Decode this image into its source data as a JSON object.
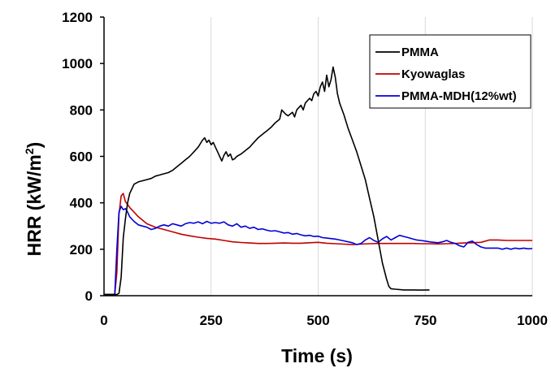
{
  "chart_data": {
    "type": "line",
    "title": "",
    "xlabel": "Time (s)",
    "ylabel_main": "HRR (kW/m",
    "ylabel_sup": "2",
    "ylabel_tail": ")",
    "xlim": [
      0,
      1000
    ],
    "ylim": [
      0,
      1200
    ],
    "xticks": [
      0,
      250,
      500,
      750,
      1000
    ],
    "yticks": [
      0,
      200,
      400,
      600,
      800,
      1000,
      1200
    ],
    "grid": {
      "vertical": true,
      "horizontal": false
    },
    "legend_position": "top-right",
    "series": [
      {
        "name": "PMMA",
        "color": "#000000",
        "points": [
          [
            0,
            5
          ],
          [
            30,
            5
          ],
          [
            35,
            10
          ],
          [
            40,
            80
          ],
          [
            45,
            250
          ],
          [
            50,
            330
          ],
          [
            55,
            400
          ],
          [
            60,
            440
          ],
          [
            65,
            460
          ],
          [
            70,
            480
          ],
          [
            80,
            490
          ],
          [
            90,
            495
          ],
          [
            100,
            500
          ],
          [
            110,
            505
          ],
          [
            120,
            515
          ],
          [
            130,
            520
          ],
          [
            140,
            525
          ],
          [
            150,
            530
          ],
          [
            160,
            540
          ],
          [
            170,
            555
          ],
          [
            180,
            570
          ],
          [
            190,
            585
          ],
          [
            200,
            600
          ],
          [
            210,
            620
          ],
          [
            220,
            640
          ],
          [
            230,
            670
          ],
          [
            235,
            680
          ],
          [
            240,
            660
          ],
          [
            245,
            670
          ],
          [
            250,
            650
          ],
          [
            255,
            660
          ],
          [
            260,
            640
          ],
          [
            265,
            620
          ],
          [
            270,
            600
          ],
          [
            275,
            580
          ],
          [
            280,
            605
          ],
          [
            285,
            620
          ],
          [
            290,
            600
          ],
          [
            295,
            610
          ],
          [
            300,
            585
          ],
          [
            305,
            590
          ],
          [
            310,
            600
          ],
          [
            320,
            610
          ],
          [
            330,
            625
          ],
          [
            340,
            640
          ],
          [
            350,
            660
          ],
          [
            360,
            680
          ],
          [
            370,
            695
          ],
          [
            380,
            710
          ],
          [
            390,
            725
          ],
          [
            400,
            745
          ],
          [
            410,
            760
          ],
          [
            415,
            800
          ],
          [
            420,
            790
          ],
          [
            425,
            780
          ],
          [
            430,
            775
          ],
          [
            440,
            790
          ],
          [
            445,
            770
          ],
          [
            450,
            800
          ],
          [
            460,
            820
          ],
          [
            465,
            800
          ],
          [
            470,
            830
          ],
          [
            480,
            850
          ],
          [
            485,
            840
          ],
          [
            490,
            870
          ],
          [
            495,
            880
          ],
          [
            500,
            860
          ],
          [
            505,
            900
          ],
          [
            510,
            920
          ],
          [
            515,
            880
          ],
          [
            520,
            950
          ],
          [
            525,
            900
          ],
          [
            530,
            930
          ],
          [
            535,
            985
          ],
          [
            540,
            940
          ],
          [
            545,
            870
          ],
          [
            550,
            830
          ],
          [
            560,
            780
          ],
          [
            570,
            720
          ],
          [
            580,
            670
          ],
          [
            590,
            620
          ],
          [
            600,
            560
          ],
          [
            610,
            500
          ],
          [
            620,
            420
          ],
          [
            630,
            340
          ],
          [
            640,
            240
          ],
          [
            650,
            140
          ],
          [
            660,
            70
          ],
          [
            665,
            40
          ],
          [
            670,
            30
          ],
          [
            680,
            28
          ],
          [
            700,
            25
          ],
          [
            720,
            25
          ],
          [
            740,
            24
          ],
          [
            760,
            25
          ]
        ]
      },
      {
        "name": "Kyowaglas",
        "color": "#c00000",
        "points": [
          [
            0,
            5
          ],
          [
            25,
            5
          ],
          [
            30,
            100
          ],
          [
            35,
            350
          ],
          [
            40,
            430
          ],
          [
            45,
            440
          ],
          [
            50,
            405
          ],
          [
            60,
            380
          ],
          [
            70,
            360
          ],
          [
            80,
            340
          ],
          [
            100,
            310
          ],
          [
            120,
            295
          ],
          [
            140,
            285
          ],
          [
            160,
            275
          ],
          [
            180,
            265
          ],
          [
            200,
            258
          ],
          [
            220,
            252
          ],
          [
            240,
            247
          ],
          [
            260,
            244
          ],
          [
            280,
            238
          ],
          [
            300,
            232
          ],
          [
            320,
            229
          ],
          [
            340,
            227
          ],
          [
            360,
            225
          ],
          [
            380,
            225
          ],
          [
            400,
            226
          ],
          [
            420,
            227
          ],
          [
            440,
            226
          ],
          [
            460,
            226
          ],
          [
            480,
            228
          ],
          [
            500,
            230
          ],
          [
            520,
            226
          ],
          [
            540,
            224
          ],
          [
            560,
            222
          ],
          [
            580,
            220
          ],
          [
            600,
            222
          ],
          [
            620,
            224
          ],
          [
            640,
            225
          ],
          [
            660,
            225
          ],
          [
            680,
            225
          ],
          [
            700,
            225
          ],
          [
            720,
            225
          ],
          [
            740,
            224
          ],
          [
            760,
            224
          ],
          [
            780,
            223
          ],
          [
            800,
            224
          ],
          [
            820,
            225
          ],
          [
            840,
            227
          ],
          [
            860,
            228
          ],
          [
            880,
            230
          ],
          [
            900,
            240
          ],
          [
            920,
            240
          ],
          [
            940,
            238
          ],
          [
            960,
            238
          ],
          [
            980,
            238
          ],
          [
            1000,
            238
          ]
        ]
      },
      {
        "name": "PMMA-MDH(12%wt)",
        "color": "#0000d8",
        "points": [
          [
            0,
            5
          ],
          [
            25,
            5
          ],
          [
            30,
            200
          ],
          [
            35,
            360
          ],
          [
            40,
            385
          ],
          [
            45,
            370
          ],
          [
            50,
            375
          ],
          [
            55,
            360
          ],
          [
            60,
            340
          ],
          [
            70,
            320
          ],
          [
            80,
            305
          ],
          [
            90,
            300
          ],
          [
            100,
            295
          ],
          [
            110,
            285
          ],
          [
            120,
            290
          ],
          [
            130,
            300
          ],
          [
            140,
            305
          ],
          [
            150,
            300
          ],
          [
            160,
            310
          ],
          [
            170,
            305
          ],
          [
            180,
            300
          ],
          [
            190,
            310
          ],
          [
            200,
            315
          ],
          [
            210,
            312
          ],
          [
            220,
            318
          ],
          [
            230,
            310
          ],
          [
            240,
            320
          ],
          [
            250,
            312
          ],
          [
            260,
            315
          ],
          [
            270,
            312
          ],
          [
            280,
            318
          ],
          [
            290,
            305
          ],
          [
            300,
            300
          ],
          [
            310,
            310
          ],
          [
            320,
            295
          ],
          [
            330,
            300
          ],
          [
            340,
            290
          ],
          [
            350,
            295
          ],
          [
            360,
            285
          ],
          [
            370,
            288
          ],
          [
            380,
            282
          ],
          [
            390,
            278
          ],
          [
            400,
            280
          ],
          [
            410,
            275
          ],
          [
            420,
            270
          ],
          [
            430,
            272
          ],
          [
            440,
            265
          ],
          [
            450,
            268
          ],
          [
            460,
            262
          ],
          [
            470,
            258
          ],
          [
            480,
            260
          ],
          [
            490,
            255
          ],
          [
            500,
            256
          ],
          [
            510,
            250
          ],
          [
            520,
            248
          ],
          [
            530,
            246
          ],
          [
            540,
            244
          ],
          [
            550,
            240
          ],
          [
            560,
            236
          ],
          [
            570,
            232
          ],
          [
            580,
            228
          ],
          [
            590,
            220
          ],
          [
            600,
            225
          ],
          [
            610,
            240
          ],
          [
            620,
            250
          ],
          [
            630,
            238
          ],
          [
            640,
            230
          ],
          [
            650,
            245
          ],
          [
            660,
            255
          ],
          [
            670,
            240
          ],
          [
            680,
            250
          ],
          [
            690,
            260
          ],
          [
            700,
            255
          ],
          [
            710,
            250
          ],
          [
            720,
            245
          ],
          [
            730,
            240
          ],
          [
            740,
            238
          ],
          [
            750,
            235
          ],
          [
            760,
            232
          ],
          [
            770,
            230
          ],
          [
            780,
            228
          ],
          [
            790,
            232
          ],
          [
            800,
            238
          ],
          [
            810,
            230
          ],
          [
            820,
            225
          ],
          [
            830,
            215
          ],
          [
            840,
            210
          ],
          [
            850,
            230
          ],
          [
            860,
            235
          ],
          [
            870,
            220
          ],
          [
            880,
            210
          ],
          [
            890,
            205
          ],
          [
            900,
            205
          ],
          [
            910,
            205
          ],
          [
            920,
            205
          ],
          [
            930,
            200
          ],
          [
            940,
            205
          ],
          [
            950,
            200
          ],
          [
            960,
            205
          ],
          [
            970,
            202
          ],
          [
            980,
            205
          ],
          [
            990,
            202
          ],
          [
            1000,
            203
          ]
        ]
      }
    ]
  }
}
